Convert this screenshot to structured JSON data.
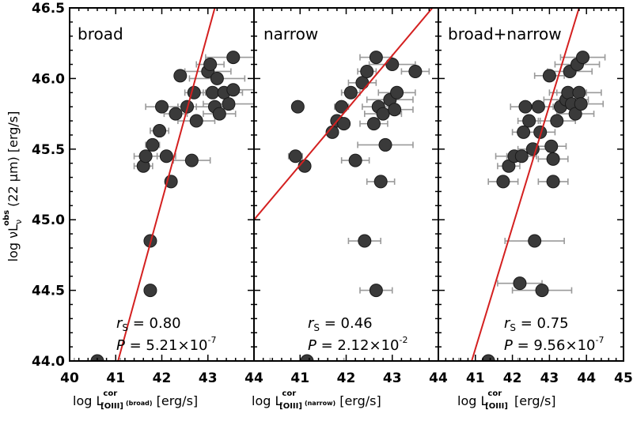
{
  "ylabel_main": "log  νL",
  "ylabel_sub": "ν",
  "ylabel_sup": "obs",
  "ylabel_rest": "(22 μm) [erg/s]",
  "y_ticks": [
    "44.0",
    "44.5",
    "45.0",
    "45.5",
    "46.0",
    "46.5"
  ],
  "panels": [
    {
      "label": "broad",
      "xlabel_main": "log L",
      "xlabel_sup": "cor",
      "xlabel_sub": "[OIII]",
      "xlabel_sub2": "(broad)",
      "xlabel_rest": " [erg/s]",
      "x_ticks": [
        "40",
        "41",
        "42",
        "43",
        "44"
      ],
      "rs_label": "r",
      "rs_sub": "S",
      "rs_value": " = 0.80",
      "p_label": "P",
      "p_value": " = 5.21",
      "p_times": "×",
      "p_base": "10",
      "p_exp": "-7"
    },
    {
      "label": "narrow",
      "xlabel_main": "log L",
      "xlabel_sup": "cor",
      "xlabel_sub": "[OIII]",
      "xlabel_sub2": "(narrow)",
      "xlabel_rest": " [erg/s]",
      "x_ticks": [
        "41",
        "42",
        "43",
        "44"
      ],
      "rs_label": "r",
      "rs_sub": "S",
      "rs_value": " = 0.46",
      "p_label": "P",
      "p_value": " = 2.12",
      "p_times": "×",
      "p_base": "10",
      "p_exp": "-2"
    },
    {
      "label": "broad+narrow",
      "xlabel_main": "log L",
      "xlabel_sup": "cor",
      "xlabel_sub": "[OIII]",
      "xlabel_sub2": "",
      "xlabel_rest": " [erg/s]",
      "x_ticks": [
        "41",
        "42",
        "43",
        "44",
        "45"
      ],
      "rs_label": "r",
      "rs_sub": "S",
      "rs_value": " = 0.75",
      "p_label": "P",
      "p_value": " = 9.56",
      "p_times": "×",
      "p_base": "10",
      "p_exp": "-7"
    }
  ],
  "chart_data": [
    {
      "type": "scatter",
      "title": "broad",
      "xlabel": "log L^cor_[OIII](broad) [erg/s]",
      "ylabel": "log νL_ν^obs (22 μm) [erg/s]",
      "xlim": [
        40,
        44
      ],
      "ylim": [
        44.0,
        46.5
      ],
      "grid": false,
      "marker_color": "#3a3a3a",
      "errorbar_color": "#9a9a9a",
      "fit_color": "#d42020",
      "fit_line": [
        [
          41.05,
          44.0
        ],
        [
          43.15,
          46.5
        ]
      ],
      "annotations": [
        "rS = 0.80",
        "P = 5.21×10-7"
      ],
      "points": [
        {
          "x": 40.6,
          "y": 44.0,
          "xerr": 0.5
        },
        {
          "x": 41.6,
          "y": 45.38,
          "xerr": 0.2
        },
        {
          "x": 41.65,
          "y": 45.45,
          "xerr": 0.25
        },
        {
          "x": 41.75,
          "y": 44.85,
          "xerr": 0.05
        },
        {
          "x": 41.75,
          "y": 44.5,
          "xerr": 0.05
        },
        {
          "x": 41.8,
          "y": 45.53,
          "xerr": 0.15
        },
        {
          "x": 41.95,
          "y": 45.63,
          "xerr": 0.2
        },
        {
          "x": 42.0,
          "y": 45.8,
          "xerr": 0.35
        },
        {
          "x": 42.1,
          "y": 45.45,
          "xerr": 0.2
        },
        {
          "x": 42.2,
          "y": 45.27,
          "xerr": 0.1
        },
        {
          "x": 42.3,
          "y": 45.75,
          "xerr": 0.25
        },
        {
          "x": 42.4,
          "y": 46.02,
          "xerr": 0.05
        },
        {
          "x": 42.55,
          "y": 45.8,
          "xerr": 0.2
        },
        {
          "x": 42.65,
          "y": 45.42,
          "xerr": 0.4
        },
        {
          "x": 42.7,
          "y": 45.9,
          "xerr": 0.2
        },
        {
          "x": 42.75,
          "y": 45.7,
          "xerr": 0.4
        },
        {
          "x": 43.0,
          "y": 46.05,
          "xerr": 0.5
        },
        {
          "x": 43.05,
          "y": 46.1,
          "xerr": 0.3
        },
        {
          "x": 43.1,
          "y": 45.9,
          "xerr": 0.5
        },
        {
          "x": 43.15,
          "y": 45.8,
          "xerr": 0.4
        },
        {
          "x": 43.2,
          "y": 46.0,
          "xerr": 0.6
        },
        {
          "x": 43.25,
          "y": 45.75,
          "xerr": 0.35
        },
        {
          "x": 43.35,
          "y": 45.9,
          "xerr": 0.4
        },
        {
          "x": 43.45,
          "y": 45.82,
          "xerr": 0.55
        },
        {
          "x": 43.55,
          "y": 45.92,
          "xerr": 0.5
        },
        {
          "x": 43.55,
          "y": 46.15,
          "xerr": 0.6
        }
      ]
    },
    {
      "type": "scatter",
      "title": "narrow",
      "xlabel": "log L^cor_[OIII](narrow) [erg/s]",
      "ylabel": "log νL_ν^obs (22 μm) [erg/s]",
      "xlim": [
        40,
        44
      ],
      "ylim": [
        44.0,
        46.5
      ],
      "grid": false,
      "marker_color": "#3a3a3a",
      "errorbar_color": "#9a9a9a",
      "fit_color": "#d42020",
      "fit_line": [
        [
          40.0,
          45.0
        ],
        [
          44.0,
          46.55
        ]
      ],
      "annotations": [
        "rS = 0.46",
        "P = 2.12×10-2"
      ],
      "points": [
        {
          "x": 40.9,
          "y": 45.45,
          "xerr": 0.15
        },
        {
          "x": 40.95,
          "y": 45.8,
          "xerr": 0.05
        },
        {
          "x": 41.1,
          "y": 45.38,
          "xerr": 0.1
        },
        {
          "x": 41.15,
          "y": 44.0,
          "xerr": 0.8
        },
        {
          "x": 41.7,
          "y": 45.62,
          "xerr": 0.05
        },
        {
          "x": 41.8,
          "y": 45.7,
          "xerr": 0.1
        },
        {
          "x": 41.9,
          "y": 45.8,
          "xerr": 0.15
        },
        {
          "x": 41.95,
          "y": 45.68,
          "xerr": 0.1
        },
        {
          "x": 42.1,
          "y": 45.9,
          "xerr": 0.2
        },
        {
          "x": 42.2,
          "y": 45.42,
          "xerr": 0.3
        },
        {
          "x": 42.35,
          "y": 45.97,
          "xerr": 0.3
        },
        {
          "x": 42.45,
          "y": 46.05,
          "xerr": 0.2
        },
        {
          "x": 42.4,
          "y": 44.85,
          "xerr": 0.35
        },
        {
          "x": 42.6,
          "y": 45.68,
          "xerr": 0.3
        },
        {
          "x": 42.65,
          "y": 44.5,
          "xerr": 0.35
        },
        {
          "x": 42.65,
          "y": 46.15,
          "xerr": 0.35
        },
        {
          "x": 42.7,
          "y": 45.8,
          "xerr": 0.35
        },
        {
          "x": 42.75,
          "y": 45.27,
          "xerr": 0.3
        },
        {
          "x": 42.8,
          "y": 45.75,
          "xerr": 0.4
        },
        {
          "x": 42.85,
          "y": 45.53,
          "xerr": 0.6
        },
        {
          "x": 42.95,
          "y": 45.85,
          "xerr": 0.5
        },
        {
          "x": 43.0,
          "y": 46.1,
          "xerr": 0.5
        },
        {
          "x": 43.05,
          "y": 45.78,
          "xerr": 0.4
        },
        {
          "x": 43.1,
          "y": 45.9,
          "xerr": 0.4
        },
        {
          "x": 43.5,
          "y": 46.05,
          "xerr": 0.3
        }
      ]
    },
    {
      "type": "scatter",
      "title": "broad+narrow",
      "xlabel": "log L^cor_[OIII] [erg/s]",
      "ylabel": "log νL_ν^obs (22 μm) [erg/s]",
      "xlim": [
        40,
        45
      ],
      "ylim": [
        44.0,
        46.5
      ],
      "grid": false,
      "marker_color": "#3a3a3a",
      "errorbar_color": "#9a9a9a",
      "fit_color": "#d42020",
      "fit_line": [
        [
          40.9,
          44.0
        ],
        [
          43.8,
          46.5
        ]
      ],
      "annotations": [
        "rS = 0.75",
        "P = 9.56×10-7"
      ],
      "points": [
        {
          "x": 41.35,
          "y": 44.0,
          "xerr": 0.8
        },
        {
          "x": 41.75,
          "y": 45.27,
          "xerr": 0.4
        },
        {
          "x": 41.9,
          "y": 45.38,
          "xerr": 0.3
        },
        {
          "x": 42.05,
          "y": 45.45,
          "xerr": 0.5
        },
        {
          "x": 42.2,
          "y": 44.55,
          "xerr": 0.6
        },
        {
          "x": 42.25,
          "y": 45.45,
          "xerr": 0.4
        },
        {
          "x": 42.3,
          "y": 45.62,
          "xerr": 0.3
        },
        {
          "x": 42.35,
          "y": 45.8,
          "xerr": 0.4
        },
        {
          "x": 42.45,
          "y": 45.7,
          "xerr": 0.3
        },
        {
          "x": 42.55,
          "y": 45.5,
          "xerr": 0.4
        },
        {
          "x": 42.6,
          "y": 44.85,
          "xerr": 0.8
        },
        {
          "x": 42.7,
          "y": 45.8,
          "xerr": 0.4
        },
        {
          "x": 42.75,
          "y": 45.62,
          "xerr": 0.4
        },
        {
          "x": 42.8,
          "y": 44.5,
          "xerr": 0.8
        },
        {
          "x": 43.0,
          "y": 46.02,
          "xerr": 0.4
        },
        {
          "x": 43.05,
          "y": 45.52,
          "xerr": 0.4
        },
        {
          "x": 43.1,
          "y": 45.43,
          "xerr": 0.4
        },
        {
          "x": 43.1,
          "y": 45.27,
          "xerr": 0.4
        },
        {
          "x": 43.2,
          "y": 45.7,
          "xerr": 0.5
        },
        {
          "x": 43.3,
          "y": 45.8,
          "xerr": 0.5
        },
        {
          "x": 43.45,
          "y": 45.85,
          "xerr": 0.6
        },
        {
          "x": 43.5,
          "y": 45.9,
          "xerr": 0.5
        },
        {
          "x": 43.55,
          "y": 46.05,
          "xerr": 0.6
        },
        {
          "x": 43.6,
          "y": 45.82,
          "xerr": 0.4
        },
        {
          "x": 43.7,
          "y": 45.75,
          "xerr": 0.5
        },
        {
          "x": 43.75,
          "y": 46.1,
          "xerr": 0.6
        },
        {
          "x": 43.8,
          "y": 45.9,
          "xerr": 0.6
        },
        {
          "x": 43.85,
          "y": 45.82,
          "xerr": 0.6
        },
        {
          "x": 43.9,
          "y": 46.15,
          "xerr": 0.6
        }
      ]
    }
  ]
}
